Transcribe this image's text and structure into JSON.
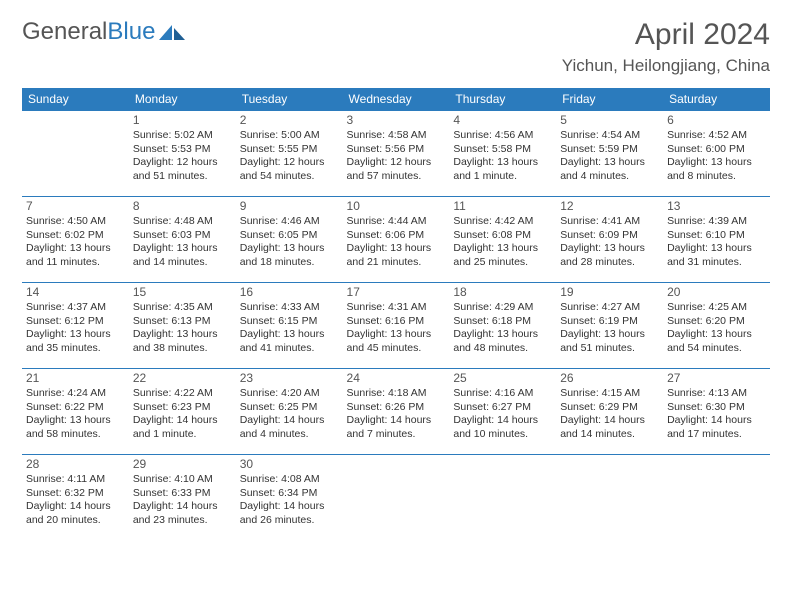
{
  "brand": {
    "part1": "General",
    "part2": "Blue"
  },
  "title": "April 2024",
  "location": "Yichun, Heilongjiang, China",
  "colors": {
    "header_bg": "#2b7bbd",
    "header_fg": "#ffffff",
    "rule": "#2b7bbd",
    "text": "#333333",
    "title": "#555555"
  },
  "weekdays": [
    "Sunday",
    "Monday",
    "Tuesday",
    "Wednesday",
    "Thursday",
    "Friday",
    "Saturday"
  ],
  "weeks": [
    [
      {
        "day": "",
        "lines": []
      },
      {
        "day": "1",
        "lines": [
          "Sunrise: 5:02 AM",
          "Sunset: 5:53 PM",
          "Daylight: 12 hours and 51 minutes."
        ]
      },
      {
        "day": "2",
        "lines": [
          "Sunrise: 5:00 AM",
          "Sunset: 5:55 PM",
          "Daylight: 12 hours and 54 minutes."
        ]
      },
      {
        "day": "3",
        "lines": [
          "Sunrise: 4:58 AM",
          "Sunset: 5:56 PM",
          "Daylight: 12 hours and 57 minutes."
        ]
      },
      {
        "day": "4",
        "lines": [
          "Sunrise: 4:56 AM",
          "Sunset: 5:58 PM",
          "Daylight: 13 hours and 1 minute."
        ]
      },
      {
        "day": "5",
        "lines": [
          "Sunrise: 4:54 AM",
          "Sunset: 5:59 PM",
          "Daylight: 13 hours and 4 minutes."
        ]
      },
      {
        "day": "6",
        "lines": [
          "Sunrise: 4:52 AM",
          "Sunset: 6:00 PM",
          "Daylight: 13 hours and 8 minutes."
        ]
      }
    ],
    [
      {
        "day": "7",
        "lines": [
          "Sunrise: 4:50 AM",
          "Sunset: 6:02 PM",
          "Daylight: 13 hours and 11 minutes."
        ]
      },
      {
        "day": "8",
        "lines": [
          "Sunrise: 4:48 AM",
          "Sunset: 6:03 PM",
          "Daylight: 13 hours and 14 minutes."
        ]
      },
      {
        "day": "9",
        "lines": [
          "Sunrise: 4:46 AM",
          "Sunset: 6:05 PM",
          "Daylight: 13 hours and 18 minutes."
        ]
      },
      {
        "day": "10",
        "lines": [
          "Sunrise: 4:44 AM",
          "Sunset: 6:06 PM",
          "Daylight: 13 hours and 21 minutes."
        ]
      },
      {
        "day": "11",
        "lines": [
          "Sunrise: 4:42 AM",
          "Sunset: 6:08 PM",
          "Daylight: 13 hours and 25 minutes."
        ]
      },
      {
        "day": "12",
        "lines": [
          "Sunrise: 4:41 AM",
          "Sunset: 6:09 PM",
          "Daylight: 13 hours and 28 minutes."
        ]
      },
      {
        "day": "13",
        "lines": [
          "Sunrise: 4:39 AM",
          "Sunset: 6:10 PM",
          "Daylight: 13 hours and 31 minutes."
        ]
      }
    ],
    [
      {
        "day": "14",
        "lines": [
          "Sunrise: 4:37 AM",
          "Sunset: 6:12 PM",
          "Daylight: 13 hours and 35 minutes."
        ]
      },
      {
        "day": "15",
        "lines": [
          "Sunrise: 4:35 AM",
          "Sunset: 6:13 PM",
          "Daylight: 13 hours and 38 minutes."
        ]
      },
      {
        "day": "16",
        "lines": [
          "Sunrise: 4:33 AM",
          "Sunset: 6:15 PM",
          "Daylight: 13 hours and 41 minutes."
        ]
      },
      {
        "day": "17",
        "lines": [
          "Sunrise: 4:31 AM",
          "Sunset: 6:16 PM",
          "Daylight: 13 hours and 45 minutes."
        ]
      },
      {
        "day": "18",
        "lines": [
          "Sunrise: 4:29 AM",
          "Sunset: 6:18 PM",
          "Daylight: 13 hours and 48 minutes."
        ]
      },
      {
        "day": "19",
        "lines": [
          "Sunrise: 4:27 AM",
          "Sunset: 6:19 PM",
          "Daylight: 13 hours and 51 minutes."
        ]
      },
      {
        "day": "20",
        "lines": [
          "Sunrise: 4:25 AM",
          "Sunset: 6:20 PM",
          "Daylight: 13 hours and 54 minutes."
        ]
      }
    ],
    [
      {
        "day": "21",
        "lines": [
          "Sunrise: 4:24 AM",
          "Sunset: 6:22 PM",
          "Daylight: 13 hours and 58 minutes."
        ]
      },
      {
        "day": "22",
        "lines": [
          "Sunrise: 4:22 AM",
          "Sunset: 6:23 PM",
          "Daylight: 14 hours and 1 minute."
        ]
      },
      {
        "day": "23",
        "lines": [
          "Sunrise: 4:20 AM",
          "Sunset: 6:25 PM",
          "Daylight: 14 hours and 4 minutes."
        ]
      },
      {
        "day": "24",
        "lines": [
          "Sunrise: 4:18 AM",
          "Sunset: 6:26 PM",
          "Daylight: 14 hours and 7 minutes."
        ]
      },
      {
        "day": "25",
        "lines": [
          "Sunrise: 4:16 AM",
          "Sunset: 6:27 PM",
          "Daylight: 14 hours and 10 minutes."
        ]
      },
      {
        "day": "26",
        "lines": [
          "Sunrise: 4:15 AM",
          "Sunset: 6:29 PM",
          "Daylight: 14 hours and 14 minutes."
        ]
      },
      {
        "day": "27",
        "lines": [
          "Sunrise: 4:13 AM",
          "Sunset: 6:30 PM",
          "Daylight: 14 hours and 17 minutes."
        ]
      }
    ],
    [
      {
        "day": "28",
        "lines": [
          "Sunrise: 4:11 AM",
          "Sunset: 6:32 PM",
          "Daylight: 14 hours and 20 minutes."
        ]
      },
      {
        "day": "29",
        "lines": [
          "Sunrise: 4:10 AM",
          "Sunset: 6:33 PM",
          "Daylight: 14 hours and 23 minutes."
        ]
      },
      {
        "day": "30",
        "lines": [
          "Sunrise: 4:08 AM",
          "Sunset: 6:34 PM",
          "Daylight: 14 hours and 26 minutes."
        ]
      },
      {
        "day": "",
        "lines": []
      },
      {
        "day": "",
        "lines": []
      },
      {
        "day": "",
        "lines": []
      },
      {
        "day": "",
        "lines": []
      }
    ]
  ]
}
